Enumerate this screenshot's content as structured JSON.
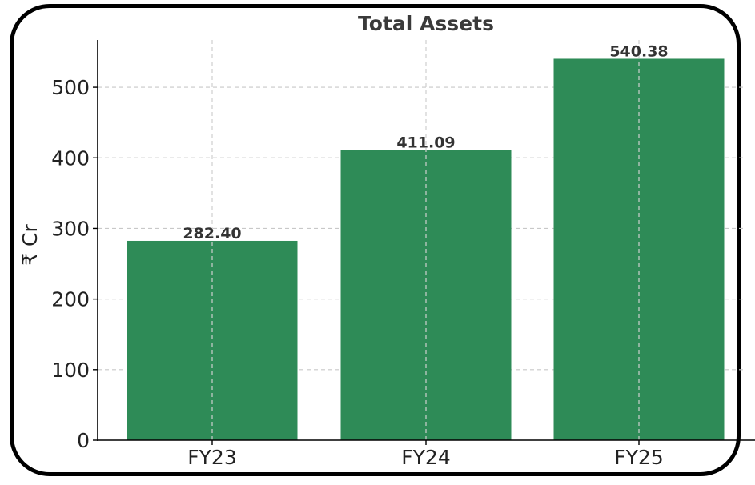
{
  "chart_data": {
    "type": "bar",
    "title": "Total Assets",
    "xlabel": "",
    "ylabel": "₹ Cr",
    "categories": [
      "FY23",
      "FY24",
      "FY25"
    ],
    "values": [
      282.4,
      411.09,
      540.38
    ],
    "value_labels": [
      "282.40",
      "411.09",
      "540.38"
    ],
    "ylim": [
      0,
      567
    ],
    "yticks": [
      0,
      100,
      200,
      300,
      400,
      500
    ],
    "grid": true,
    "bar_color": "#2e8b57"
  }
}
